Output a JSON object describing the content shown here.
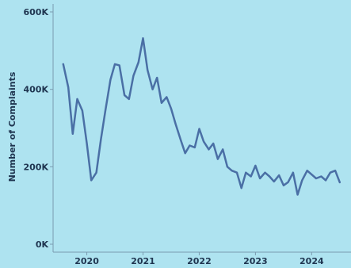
{
  "chart_data": {
    "type": "line",
    "title": "",
    "xlabel": "",
    "ylabel": "Number of Complaints",
    "xlim": [
      2019.4,
      2024.7
    ],
    "ylim": [
      0,
      600000
    ],
    "x_ticks": [
      2020,
      2021,
      2022,
      2023,
      2024
    ],
    "x_tick_labels": [
      "2020",
      "2021",
      "2022",
      "2023",
      "2024"
    ],
    "y_ticks": [
      0,
      200000,
      400000,
      600000
    ],
    "y_tick_labels": [
      "0K",
      "200K",
      "400K",
      "600K"
    ],
    "grid": false,
    "line_color": "#4a6fa5",
    "background": "#aee3f0",
    "series": [
      {
        "x": [
          2019.58,
          2019.67,
          2019.75,
          2019.83,
          2019.92,
          2020.0,
          2020.08,
          2020.17,
          2020.25,
          2020.33,
          2020.42,
          2020.5,
          2020.58,
          2020.67,
          2020.75,
          2020.83,
          2020.92,
          2021.0,
          2021.08,
          2021.17,
          2021.25,
          2021.33,
          2021.42,
          2021.5,
          2021.58,
          2021.67,
          2021.75,
          2021.83,
          2021.92,
          2022.0,
          2022.08,
          2022.17,
          2022.25,
          2022.33,
          2022.42,
          2022.5,
          2022.58,
          2022.67,
          2022.75,
          2022.83,
          2022.92,
          2023.0,
          2023.08,
          2023.17,
          2023.25,
          2023.33,
          2023.42,
          2023.5,
          2023.58,
          2023.67,
          2023.75,
          2023.83,
          2023.92,
          2024.0,
          2024.08,
          2024.17,
          2024.25,
          2024.33,
          2024.42,
          2024.5
        ],
        "values": [
          465000,
          405000,
          285000,
          375000,
          345000,
          260000,
          165000,
          185000,
          270000,
          345000,
          425000,
          465000,
          462000,
          385000,
          375000,
          435000,
          470000,
          532000,
          450000,
          400000,
          430000,
          365000,
          380000,
          350000,
          310000,
          270000,
          235000,
          255000,
          250000,
          298000,
          265000,
          245000,
          260000,
          220000,
          245000,
          200000,
          190000,
          185000,
          145000,
          185000,
          175000,
          203000,
          170000,
          185000,
          175000,
          162000,
          178000,
          152000,
          160000,
          185000,
          128000,
          165000,
          190000,
          180000,
          170000,
          175000,
          165000,
          185000,
          190000,
          160000
        ]
      }
    ]
  }
}
